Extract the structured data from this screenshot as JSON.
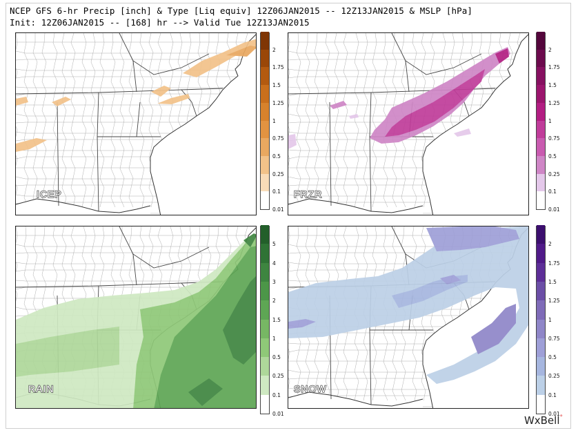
{
  "header": {
    "title_line1": "NCEP GFS 6-hr Precip [inch] & Type [Liq equiv] 12Z06JAN2015 -- 12Z13JAN2015 & MSLP [hPa]",
    "title_line2": "Init: 12Z06JAN2015 -- [168] hr --> Valid Tue 12Z13JAN2015"
  },
  "panels": [
    {
      "label": "ICEP",
      "colors": [
        "#ffffff",
        "#f9dcb8",
        "#f2c289",
        "#e9a860",
        "#e29341",
        "#d7822c",
        "#c96f1c",
        "#b35a10",
        "#9a4708",
        "#7f3504"
      ],
      "ticks": [
        "2",
        "1.75",
        "1.5",
        "1.25",
        "1",
        "0.75",
        "0.5",
        "0.25",
        "0.1",
        "0.01"
      ]
    },
    {
      "label": "FRZR",
      "colors": [
        "#ffffff",
        "#e4c8ea",
        "#cf86c6",
        "#c95bb0",
        "#c03c9a",
        "#b21d82",
        "#9b156d",
        "#861060",
        "#6c0a4d",
        "#54063c"
      ],
      "ticks": [
        "2",
        "1.75",
        "1.5",
        "1.25",
        "1",
        "0.75",
        "0.5",
        "0.25",
        "0.1",
        "0.01"
      ]
    },
    {
      "label": "RAIN",
      "colors": [
        "#ffffff",
        "#cfe9c2",
        "#aed79a",
        "#8fc878",
        "#77b764",
        "#5ea654",
        "#4c9648",
        "#3e8540",
        "#2f7335",
        "#235f2a"
      ],
      "ticks": [
        "5",
        "4",
        "3",
        "2",
        "1.5",
        "1",
        "0.5",
        "0.25",
        "0.1",
        "0.01"
      ]
    },
    {
      "label": "SNOW",
      "colors": [
        "#ffffff",
        "#bcd0e7",
        "#a6b6df",
        "#9e9fd7",
        "#8f86c8",
        "#7f6bb8",
        "#6b4ea6",
        "#5d2e97",
        "#501a88",
        "#3c0f6e"
      ],
      "ticks": [
        "2",
        "1.75",
        "1.5",
        "1.25",
        "1",
        "0.75",
        "0.5",
        "0.25",
        "0.1",
        "0.01"
      ]
    }
  ],
  "brand": {
    "text": "WxBell",
    "mark": "°"
  }
}
